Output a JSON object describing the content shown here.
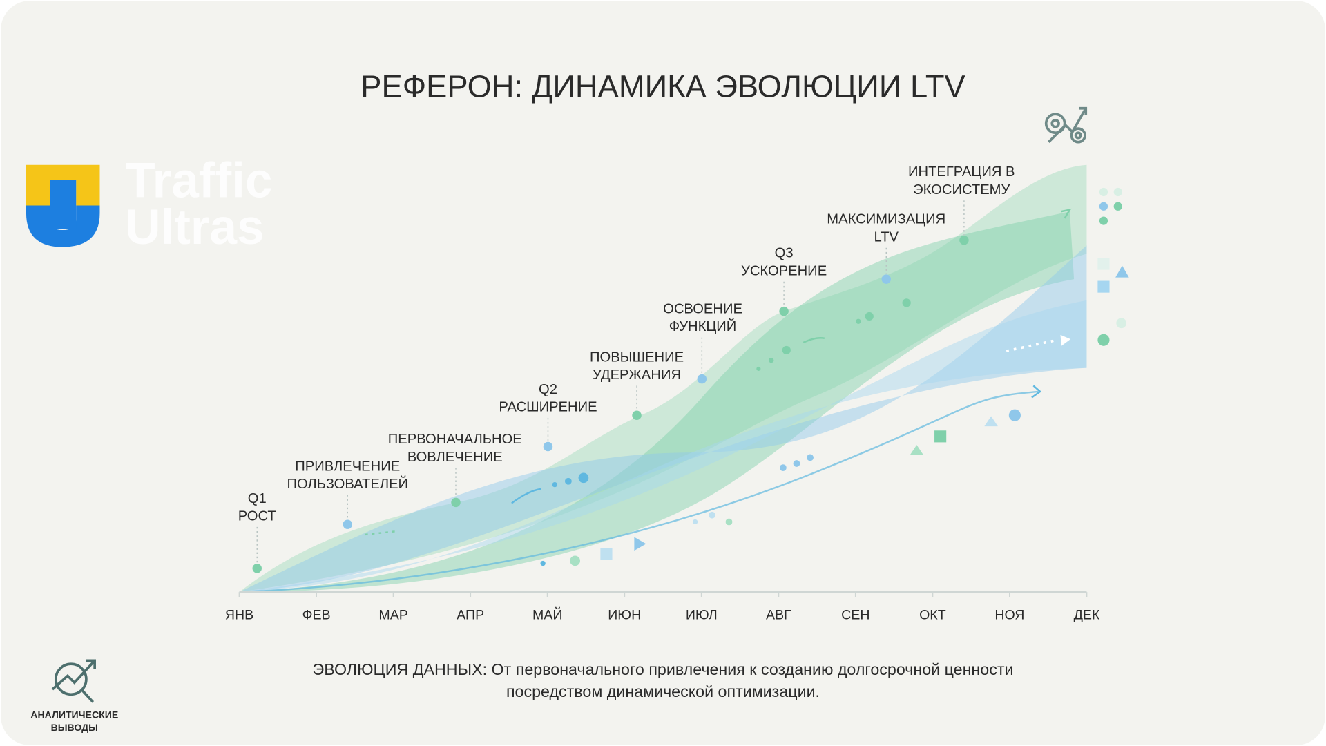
{
  "title": "РЕФЕРОН: ДИНАМИКА ЭВОЛЮЦИИ LTV",
  "logo": {
    "lines": [
      "Traffic",
      "Ultras"
    ]
  },
  "months": [
    "ЯНВ",
    "ФЕВ",
    "МАР",
    "АПР",
    "МАЙ",
    "ИЮН",
    "ИЮЛ",
    "АВГ",
    "СЕН",
    "ОКТ",
    "НОЯ",
    "ДЕК"
  ],
  "milestones": [
    {
      "lines": [
        "Q1",
        "РОСТ"
      ]
    },
    {
      "lines": [
        "ПРИВЛЕЧЕНИЕ",
        "ПОЛЬЗОВАТЕЛЕЙ"
      ]
    },
    {
      "lines": [
        "ПЕРВОНАЧАЛЬНОЕ",
        "ВОВЛЕЧЕНИЕ"
      ]
    },
    {
      "lines": [
        "Q2",
        "РАСШИРЕНИЕ"
      ]
    },
    {
      "lines": [
        "ПОВЫШЕНИЕ",
        "УДЕРЖАНИЯ"
      ]
    },
    {
      "lines": [
        "ОСВОЕНИЕ",
        "ФУНКЦИЙ"
      ]
    },
    {
      "lines": [
        "Q3",
        "УСКОРЕНИЕ"
      ]
    },
    {
      "lines": [
        "МАКСИМИЗАЦИЯ",
        "LTV"
      ]
    },
    {
      "lines": [
        "ИНТЕГРАЦИЯ В",
        "ЭКОСИСТЕМУ"
      ]
    }
  ],
  "caption": {
    "lines": [
      "ЭВОЛЮЦИЯ ДАННЫХ: От первоначального привлечения к созданию долгосрочной ценности",
      "посредством динамической оптимизации."
    ]
  },
  "badge": {
    "lines": [
      "АНАЛИТИЧЕСКИЕ",
      "ВЫВОДЫ"
    ]
  }
}
